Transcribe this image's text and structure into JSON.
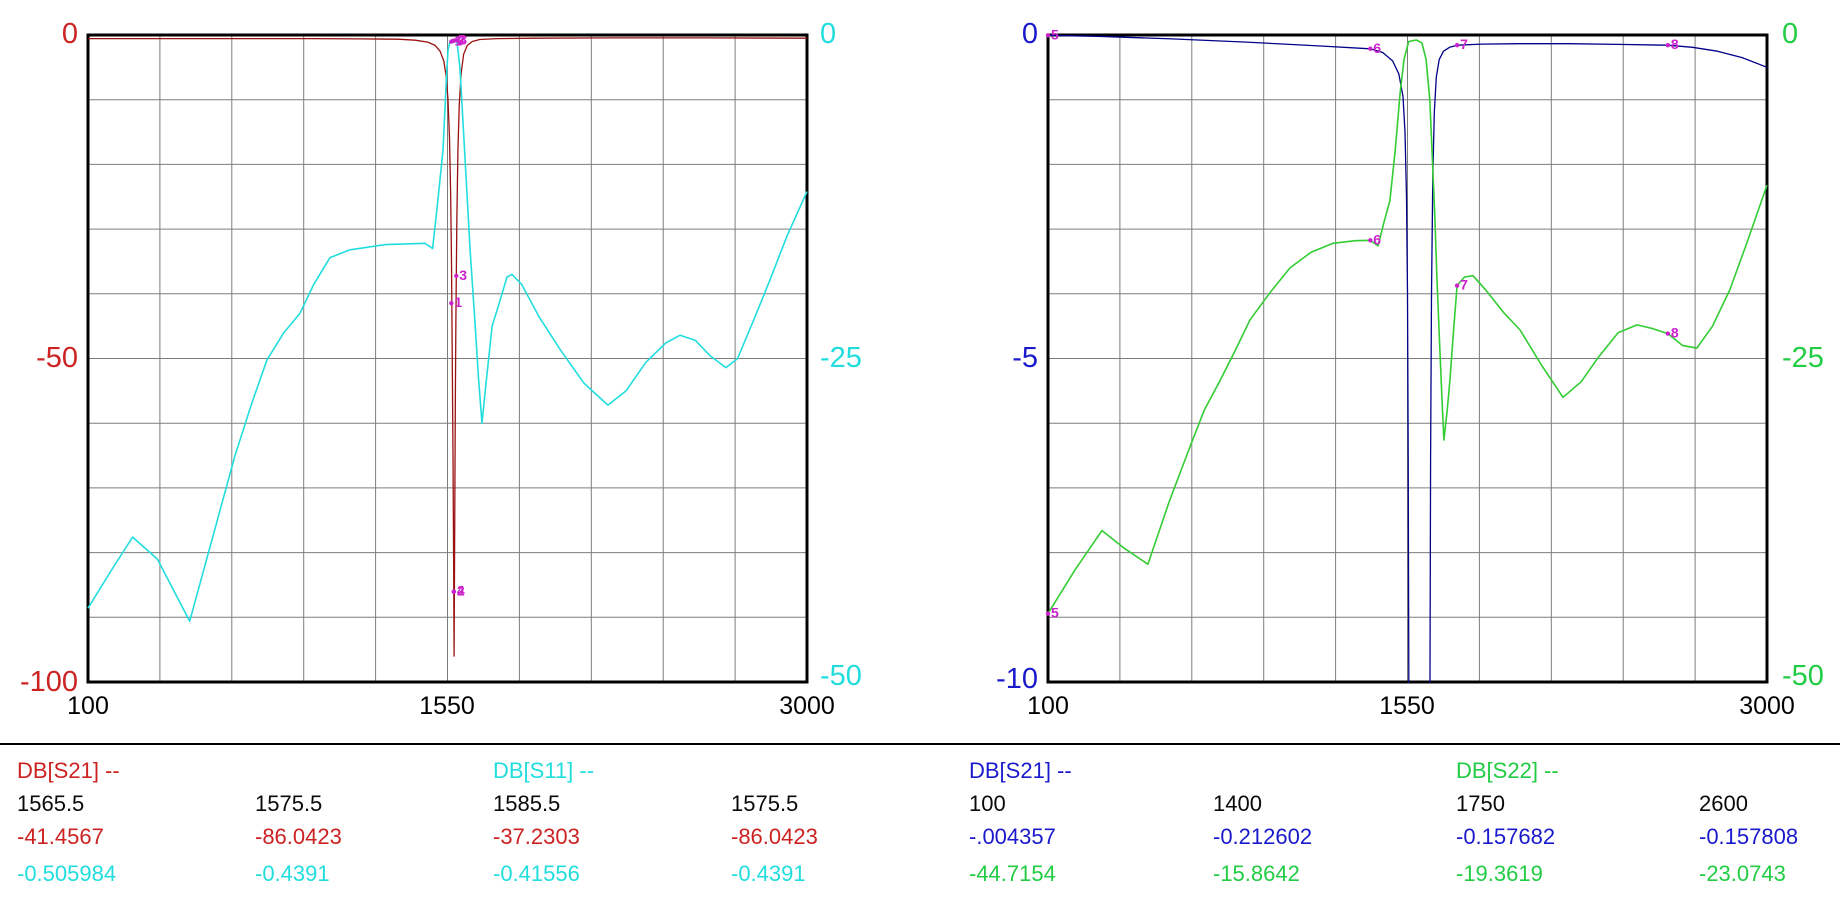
{
  "marker_color": "#cc22cc",
  "grid_color": "#7d7d7d",
  "chart_data": [
    {
      "type": "line",
      "x_axis": {
        "min": 100,
        "max": 3000,
        "tick_labels": [
          "100",
          "1550",
          "3000"
        ]
      },
      "y_axis_left": {
        "min": -100,
        "max": 0,
        "tick_labels": [
          "0",
          "-50",
          "-100"
        ],
        "color": "#cc2222"
      },
      "y_axis_right": {
        "min": -50,
        "max": 0,
        "tick_labels": [
          "0",
          "-25",
          "-50"
        ],
        "color": "#22dddd"
      },
      "grid": {
        "x_divisions": 10,
        "y_divisions": 10
      },
      "series": [
        {
          "name": "DB[S21]",
          "axis": "left",
          "color": "#991111",
          "points": [
            [
              100,
              -0.55
            ],
            [
              400,
              -0.55
            ],
            [
              700,
              -0.55
            ],
            [
              1000,
              -0.55
            ],
            [
              1200,
              -0.6
            ],
            [
              1350,
              -0.65
            ],
            [
              1420,
              -0.8
            ],
            [
              1470,
              -1.1
            ],
            [
              1500,
              -1.6
            ],
            [
              1520,
              -2.5
            ],
            [
              1535,
              -4
            ],
            [
              1545,
              -6.5
            ],
            [
              1552,
              -10
            ],
            [
              1558,
              -16
            ],
            [
              1563,
              -25
            ],
            [
              1566,
              -35
            ],
            [
              1568,
              -45
            ],
            [
              1570,
              -55
            ],
            [
              1572,
              -65
            ],
            [
              1574,
              -78
            ],
            [
              1575.5,
              -86
            ],
            [
              1576.5,
              -96
            ],
            [
              1578,
              -86
            ],
            [
              1580,
              -70
            ],
            [
              1582,
              -55
            ],
            [
              1584,
              -44
            ],
            [
              1585.5,
              -37.2
            ],
            [
              1588,
              -28
            ],
            [
              1592,
              -18
            ],
            [
              1597,
              -11
            ],
            [
              1605,
              -6
            ],
            [
              1615,
              -3
            ],
            [
              1630,
              -1.6
            ],
            [
              1650,
              -1
            ],
            [
              1680,
              -0.7
            ],
            [
              1750,
              -0.55
            ],
            [
              1900,
              -0.5
            ],
            [
              2200,
              -0.45
            ],
            [
              2600,
              -0.45
            ],
            [
              3000,
              -0.5
            ]
          ]
        },
        {
          "name": "DB[S11]",
          "axis": "right",
          "color": "#22dddd",
          "points": [
            [
              100,
              -44.3
            ],
            [
              190,
              -41.5
            ],
            [
              280,
              -38.8
            ],
            [
              380,
              -40.5
            ],
            [
              510,
              -45.3
            ],
            [
              600,
              -39
            ],
            [
              693,
              -32.5
            ],
            [
              760,
              -28.5
            ],
            [
              822,
              -25.1
            ],
            [
              890,
              -23
            ],
            [
              955,
              -21.5
            ],
            [
              1010,
              -19.3
            ],
            [
              1076,
              -17.2
            ],
            [
              1157,
              -16.6
            ],
            [
              1300,
              -16.2
            ],
            [
              1459,
              -16.1
            ],
            [
              1490,
              -16.5
            ],
            [
              1510,
              -13
            ],
            [
              1532,
              -8.9
            ],
            [
              1545,
              -3.5
            ],
            [
              1552,
              -1.2
            ],
            [
              1560,
              -0.5
            ],
            [
              1575,
              -0.44
            ],
            [
              1588,
              -0.46
            ],
            [
              1600,
              -2.5
            ],
            [
              1612,
              -6.6
            ],
            [
              1628,
              -12
            ],
            [
              1641,
              -16.6
            ],
            [
              1660,
              -22
            ],
            [
              1675,
              -26.5
            ],
            [
              1689,
              -30
            ],
            [
              1705,
              -27
            ],
            [
              1730,
              -22.5
            ],
            [
              1762,
              -20.5
            ],
            [
              1790,
              -18.7
            ],
            [
              1810,
              -18.5
            ],
            [
              1850,
              -19.3
            ],
            [
              1920,
              -21.8
            ],
            [
              2004,
              -24.3
            ],
            [
              2100,
              -26.9
            ],
            [
              2197,
              -28.6
            ],
            [
              2270,
              -27.5
            ],
            [
              2350,
              -25.3
            ],
            [
              2430,
              -23.8
            ],
            [
              2488,
              -23.2
            ],
            [
              2550,
              -23.6
            ],
            [
              2610,
              -24.8
            ],
            [
              2673,
              -25.7
            ],
            [
              2720,
              -25
            ],
            [
              2790,
              -21.8
            ],
            [
              2851,
              -18.9
            ],
            [
              2920,
              -15.5
            ],
            [
              3000,
              -12.1
            ]
          ]
        }
      ],
      "markers": [
        {
          "label": "1",
          "f": 1565.5,
          "series_values": [
            -41.4567,
            -0.505984
          ]
        },
        {
          "label": "2",
          "f": 1575.5,
          "series_values": [
            -86.0423,
            -0.4391
          ]
        },
        {
          "label": "3",
          "f": 1585.5,
          "series_values": [
            -37.2303,
            -0.41556
          ]
        },
        {
          "label": "4",
          "f": 1575.5,
          "series_values": [
            -86.0423,
            -0.4391
          ]
        }
      ],
      "legend": {
        "header_1": "DB[S21] --",
        "header_2": "DB[S11] --",
        "freqs": [
          "1565.5",
          "1575.5",
          "1585.5",
          "1575.5"
        ],
        "row_1": [
          "-41.4567",
          "-86.0423",
          "-37.2303",
          "-86.0423"
        ],
        "row_2": [
          "-0.505984",
          "-0.4391",
          "-0.41556",
          "-0.4391"
        ]
      }
    },
    {
      "type": "line",
      "x_axis": {
        "min": 100,
        "max": 3000,
        "tick_labels": [
          "100",
          "1550",
          "3000"
        ]
      },
      "y_axis_left": {
        "min": -10,
        "max": 0,
        "tick_labels": [
          "0",
          "-5",
          "-10"
        ],
        "color": "#1a1acc"
      },
      "y_axis_right": {
        "min": -50,
        "max": 0,
        "tick_labels": [
          "0",
          "-25",
          "-50"
        ],
        "color": "#22cc44"
      },
      "grid": {
        "x_divisions": 10,
        "y_divisions": 10
      },
      "series": [
        {
          "name": "DB[S21]",
          "axis": "left",
          "color": "#000088",
          "points": [
            [
              100,
              -0.004357
            ],
            [
              300,
              -0.02
            ],
            [
              600,
              -0.06
            ],
            [
              900,
              -0.11
            ],
            [
              1200,
              -0.17
            ],
            [
              1400,
              -0.212602
            ],
            [
              1450,
              -0.27
            ],
            [
              1490,
              -0.4
            ],
            [
              1515,
              -0.6
            ],
            [
              1532,
              -0.95
            ],
            [
              1540,
              -1.5
            ],
            [
              1546,
              -2.5
            ],
            [
              1550,
              -4
            ],
            [
              1553,
              -6.5
            ],
            [
              1556,
              -11
            ],
            [
              1640,
              -11
            ],
            [
              1643,
              -6.5
            ],
            [
              1647,
              -4
            ],
            [
              1652,
              -2.2
            ],
            [
              1658,
              -1.2
            ],
            [
              1666,
              -0.65
            ],
            [
              1678,
              -0.38
            ],
            [
              1695,
              -0.25
            ],
            [
              1720,
              -0.19
            ],
            [
              1750,
              -0.157682
            ],
            [
              1850,
              -0.14
            ],
            [
              2000,
              -0.135
            ],
            [
              2200,
              -0.135
            ],
            [
              2400,
              -0.145
            ],
            [
              2600,
              -0.157808
            ],
            [
              2700,
              -0.19
            ],
            [
              2800,
              -0.25
            ],
            [
              2900,
              -0.35
            ],
            [
              3000,
              -0.5
            ]
          ]
        },
        {
          "name": "DB[S22]",
          "axis": "right",
          "color": "#33cc33",
          "points": [
            [
              100,
              -44.7154
            ],
            [
              210,
              -41.3
            ],
            [
              318,
              -38.3
            ],
            [
              410,
              -39.7
            ],
            [
              503,
              -40.9
            ],
            [
              590,
              -36
            ],
            [
              673,
              -31.8
            ],
            [
              730,
              -29
            ],
            [
              794,
              -26.7
            ],
            [
              860,
              -24.2
            ],
            [
              915,
              -22
            ],
            [
              1000,
              -19.8
            ],
            [
              1076,
              -18
            ],
            [
              1160,
              -16.8
            ],
            [
              1250,
              -16.1
            ],
            [
              1340,
              -15.9
            ],
            [
              1400,
              -15.8642
            ],
            [
              1431,
              -16.3
            ],
            [
              1455,
              -14.5
            ],
            [
              1479,
              -12.8
            ],
            [
              1500,
              -9
            ],
            [
              1520,
              -4.5
            ],
            [
              1536,
              -1.9
            ],
            [
              1555,
              -0.5
            ],
            [
              1585,
              -0.39
            ],
            [
              1608,
              -0.6
            ],
            [
              1625,
              -1.9
            ],
            [
              1640,
              -5
            ],
            [
              1649,
              -8.9
            ],
            [
              1660,
              -14
            ],
            [
              1669,
              -18.9
            ],
            [
              1680,
              -24
            ],
            [
              1690,
              -28.5
            ],
            [
              1697,
              -31.3
            ],
            [
              1710,
              -29
            ],
            [
              1721,
              -26.7
            ],
            [
              1735,
              -23
            ],
            [
              1750,
              -19.3619
            ],
            [
              1780,
              -18.7
            ],
            [
              1814,
              -18.6
            ],
            [
              1870,
              -19.8
            ],
            [
              1940,
              -21.5
            ],
            [
              2004,
              -22.8
            ],
            [
              2090,
              -25.5
            ],
            [
              2177,
              -28
            ],
            [
              2250,
              -26.8
            ],
            [
              2320,
              -24.9
            ],
            [
              2400,
              -23
            ],
            [
              2476,
              -22.4
            ],
            [
              2540,
              -22.7
            ],
            [
              2600,
              -23.0743
            ],
            [
              2660,
              -24
            ],
            [
              2717,
              -24.2
            ],
            [
              2780,
              -22.5
            ],
            [
              2850,
              -19.7
            ],
            [
              2920,
              -16
            ],
            [
              3000,
              -11.6
            ]
          ]
        }
      ],
      "markers": [
        {
          "label": "5",
          "f": 100,
          "series_values": [
            -0.004357,
            -44.7154
          ]
        },
        {
          "label": "6",
          "f": 1400,
          "series_values": [
            -0.212602,
            -15.8642
          ]
        },
        {
          "label": "7",
          "f": 1750,
          "series_values": [
            -0.157682,
            -19.3619
          ]
        },
        {
          "label": "8",
          "f": 2600,
          "series_values": [
            -0.157808,
            -23.0743
          ]
        }
      ],
      "legend": {
        "header_1": "DB[S21] --",
        "header_2": "DB[S22] --",
        "freqs": [
          "100",
          "1400",
          "1750",
          "2600"
        ],
        "row_1": [
          "-.004357",
          "-0.212602",
          "-0.157682",
          "-0.157808"
        ],
        "row_2": [
          "-44.7154",
          "-15.8642",
          "-19.3619",
          "-23.0743"
        ]
      }
    }
  ]
}
